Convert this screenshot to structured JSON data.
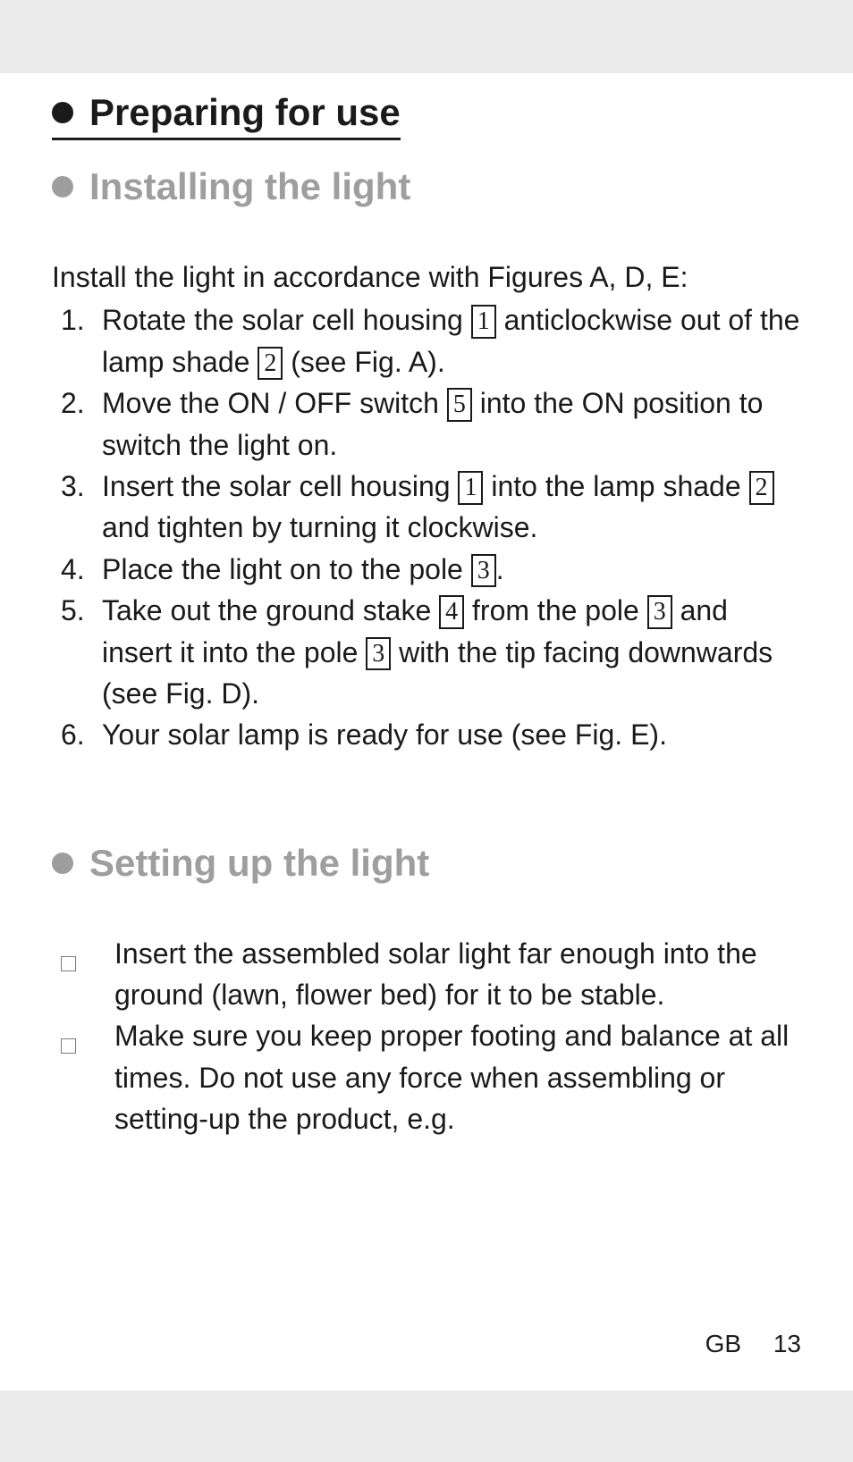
{
  "headings": {
    "h1": "Preparing for use",
    "h2a": "Installing the light",
    "h2b": "Setting up the light"
  },
  "intro": "Install the light in accordance with Figures A, D, E:",
  "steps": [
    {
      "n": "1.",
      "parts": [
        "Rotate the solar cell housing ",
        {
          "ref": "1"
        },
        " anticlockwise out of the lamp shade ",
        {
          "ref": "2"
        },
        " (see Fig. A)."
      ]
    },
    {
      "n": "2.",
      "parts": [
        "Move the ON / OFF switch ",
        {
          "ref": "5"
        },
        " into the ON position to switch the light on."
      ]
    },
    {
      "n": "3.",
      "parts": [
        "Insert the solar cell housing ",
        {
          "ref": "1"
        },
        " into the lamp shade ",
        {
          "ref": "2"
        },
        " and tighten by turning it clockwise."
      ]
    },
    {
      "n": "4.",
      "parts": [
        "Place the light on to the pole ",
        {
          "ref": "3"
        },
        "."
      ]
    },
    {
      "n": "5.",
      "parts": [
        "Take out the ground stake ",
        {
          "ref": "4"
        },
        " from the pole ",
        {
          "ref": "3"
        },
        " and insert it into the pole ",
        {
          "ref": "3"
        },
        " with the tip facing downwards (see Fig. D)."
      ]
    },
    {
      "n": "6.",
      "parts": [
        "Your solar lamp is ready for use (see Fig. E)."
      ]
    }
  ],
  "checks": [
    "Insert the assembled solar light far enough into the ground (lawn, flower bed) for it to be stable.",
    "Make sure you keep proper footing and bal­ance at all times. Do not use any force when assembling or setting-up the product, e.g."
  ],
  "footer": {
    "lang": "GB",
    "page": "13"
  },
  "colors": {
    "page_bg": "#ffffff",
    "outer_bg": "#ececec",
    "text": "#1a1a1a",
    "muted": "#9e9e9e",
    "checkbox_border": "#7a7a7a"
  }
}
